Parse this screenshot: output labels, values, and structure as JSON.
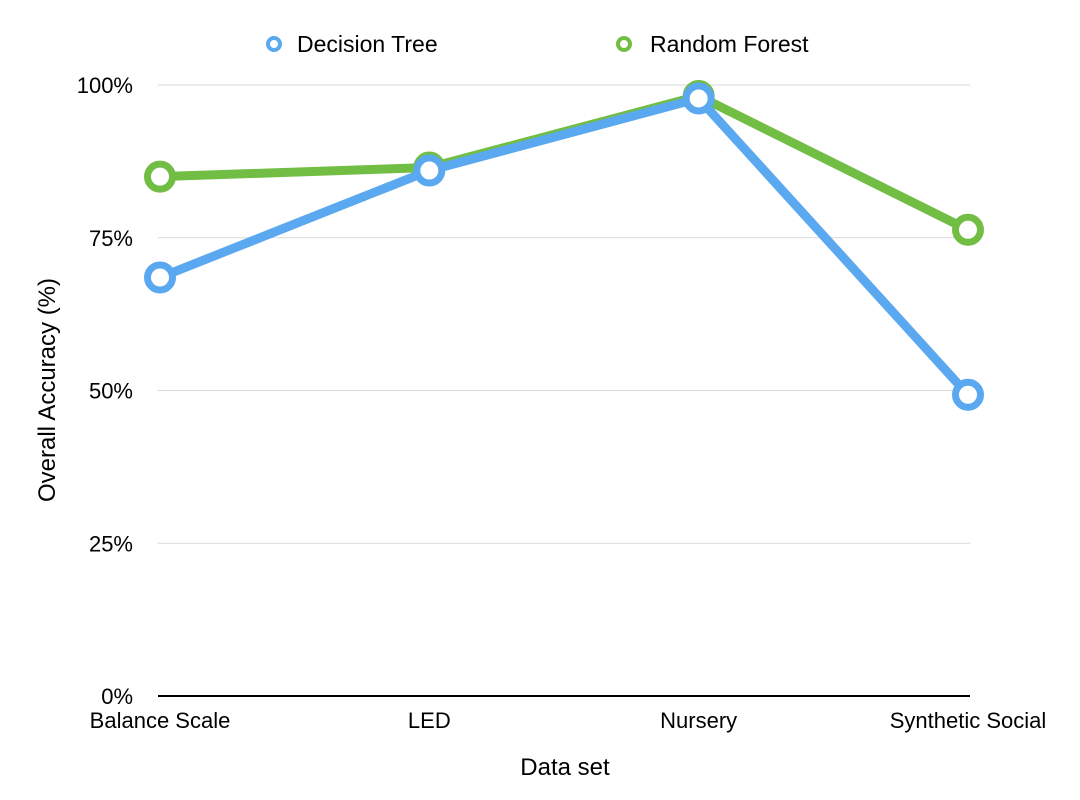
{
  "chart_data": {
    "type": "line",
    "title": "",
    "categories": [
      "Balance Scale",
      "LED",
      "Nursery",
      "Synthetic Social"
    ],
    "series": [
      {
        "name": "Decision Tree",
        "color": "#5aa8f0",
        "values": [
          68.5,
          86,
          97.8,
          49.3
        ]
      },
      {
        "name": "Random Forest",
        "color": "#72be44",
        "values": [
          85,
          86.5,
          98.2,
          76.3
        ]
      }
    ],
    "xlabel": "Data set",
    "ylabel": "Overall Accuracy (%)",
    "ylim": [
      0,
      100
    ],
    "yticks": [
      0,
      25,
      50,
      75,
      100
    ],
    "ytick_labels": [
      "0%",
      "25%",
      "50%",
      "75%",
      "100%"
    ],
    "grid": true,
    "legend_position": "top-center"
  }
}
